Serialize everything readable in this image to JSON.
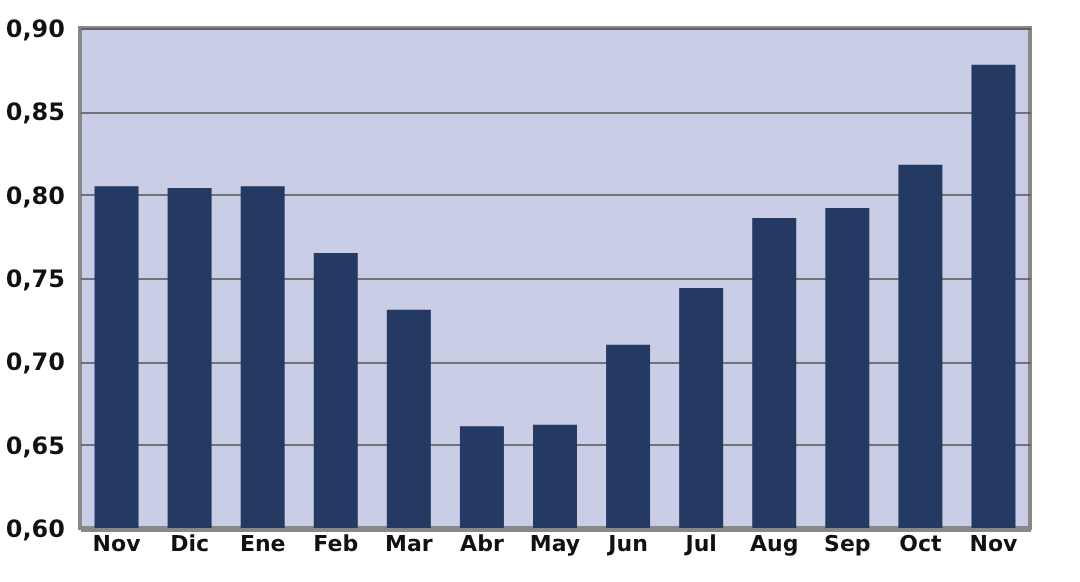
{
  "chart_data": {
    "type": "bar",
    "categories": [
      "Nov",
      "Dic",
      "Ene",
      "Feb",
      "Mar",
      "Abr",
      "May",
      "Jun",
      "Jul",
      "Aug",
      "Sep",
      "Oct",
      "Nov"
    ],
    "values": [
      0.805,
      0.804,
      0.805,
      0.765,
      0.731,
      0.661,
      0.662,
      0.71,
      0.744,
      0.786,
      0.792,
      0.818,
      0.878
    ],
    "color": "#253a63",
    "ylim": [
      0.6,
      0.9
    ],
    "yticks": [
      {
        "value": 0.6,
        "label": "0,60"
      },
      {
        "value": 0.65,
        "label": "0,65"
      },
      {
        "value": 0.7,
        "label": "0,70"
      },
      {
        "value": 0.75,
        "label": "0,75"
      },
      {
        "value": 0.8,
        "label": "0,80"
      },
      {
        "value": 0.85,
        "label": "0,85"
      },
      {
        "value": 0.9,
        "label": "0,90"
      }
    ],
    "grid": "y"
  }
}
